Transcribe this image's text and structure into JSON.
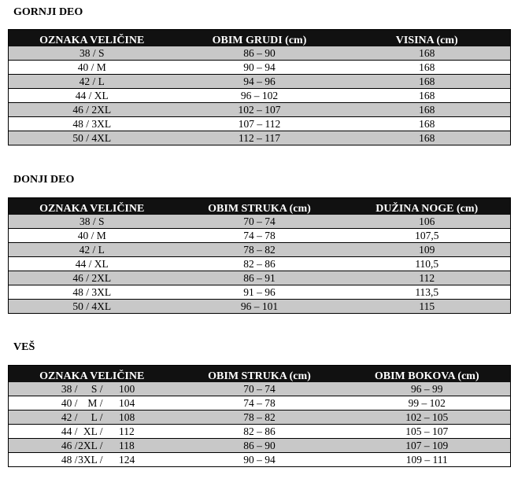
{
  "sections": [
    {
      "title": "GORNJI DEO",
      "headers": [
        "OZNAKA VELIČINE",
        "OBIM GRUDI (cm)",
        "VISINA (cm)"
      ],
      "rows": [
        [
          "38 / S",
          "86 – 90",
          "168"
        ],
        [
          "40 / M",
          "90 – 94",
          "168"
        ],
        [
          "42 / L",
          "94 – 96",
          "168"
        ],
        [
          "44 / XL",
          "96 – 102",
          "168"
        ],
        [
          "46 / 2XL",
          "102 – 107",
          "168"
        ],
        [
          "48 / 3XL",
          "107 – 112",
          "168"
        ],
        [
          "50 / 4XL",
          "112 – 117",
          "168"
        ]
      ]
    },
    {
      "title": "DONJI DEO",
      "headers": [
        "OZNAKA VELIČINE",
        "OBIM STRUKA (cm)",
        "DUŽINA NOGE (cm)"
      ],
      "rows": [
        [
          "38 / S",
          "70 – 74",
          "106"
        ],
        [
          "40 / M",
          "74 – 78",
          "107,5"
        ],
        [
          "42 / L",
          "78 – 82",
          "109"
        ],
        [
          "44 / XL",
          "82 – 86",
          "110,5"
        ],
        [
          "46 / 2XL",
          "86 – 91",
          "112"
        ],
        [
          "48 / 3XL",
          "91 – 96",
          "113,5"
        ],
        [
          "50 / 4XL",
          "96 – 101",
          "115"
        ]
      ]
    },
    {
      "title": "VEŠ",
      "headers": [
        "OZNAKA VELIČINE",
        "OBIM STRUKA (cm)",
        "OBIM BOKOVA (cm)"
      ],
      "rows": [
        [
          [
            "38 /",
            "S /",
            "100"
          ],
          "70 – 74",
          "96 – 99"
        ],
        [
          [
            "40 /",
            "M /",
            "104"
          ],
          "74 – 78",
          "99 – 102"
        ],
        [
          [
            "42 /",
            "L /",
            "108"
          ],
          "78 – 82",
          "102 – 105"
        ],
        [
          [
            "44 /",
            "XL /",
            "112"
          ],
          "82 – 86",
          "105 – 107"
        ],
        [
          [
            "46 /",
            "2XL /",
            "118"
          ],
          "86 – 90",
          "107 – 109"
        ],
        [
          [
            "48 /",
            "3XL /",
            "124"
          ],
          "90 – 94",
          "109 – 111"
        ]
      ]
    }
  ],
  "colors": {
    "header_bg": "#111111",
    "shade_row": "#c8c8c8"
  }
}
